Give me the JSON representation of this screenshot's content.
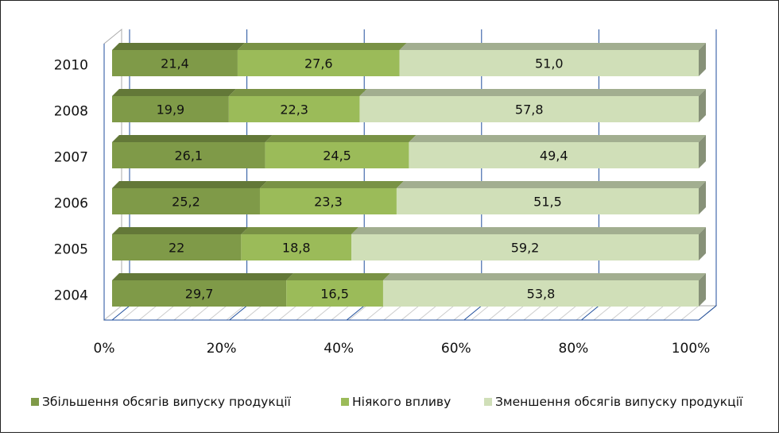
{
  "chart_data": {
    "type": "bar",
    "orientation": "horizontal",
    "stacked": "percent",
    "style": "3d",
    "categories": [
      "2010",
      "2008",
      "2007",
      "2006",
      "2005",
      "2004"
    ],
    "series": [
      {
        "name": "Збільшення обсягів випуску продукції",
        "values": [
          21.4,
          19.9,
          26.1,
          25.2,
          22,
          29.7
        ],
        "labels": [
          "21,4",
          "19,9",
          "26,1",
          "25,2",
          "22",
          "29,7"
        ],
        "color": "#7f9a48"
      },
      {
        "name": "Ніякого впливу",
        "values": [
          27.6,
          22.3,
          24.5,
          23.3,
          18.8,
          16.5
        ],
        "labels": [
          "27,6",
          "22,3",
          "24,5",
          "23,3",
          "18,8",
          "16,5"
        ],
        "color": "#9bbb59"
      },
      {
        "name": "Зменшення обсягів випуску продукції",
        "values": [
          51.0,
          57.8,
          49.4,
          51.5,
          59.2,
          53.8
        ],
        "labels": [
          "51,0",
          "57,8",
          "49,4",
          "51,5",
          "59,2",
          "53,8"
        ],
        "color": "#d0dfb8"
      }
    ],
    "x_ticks": [
      "0%",
      "20%",
      "40%",
      "60%",
      "80%",
      "100%"
    ],
    "xlim": [
      0,
      100
    ],
    "grid": true,
    "legend_position": "bottom"
  }
}
